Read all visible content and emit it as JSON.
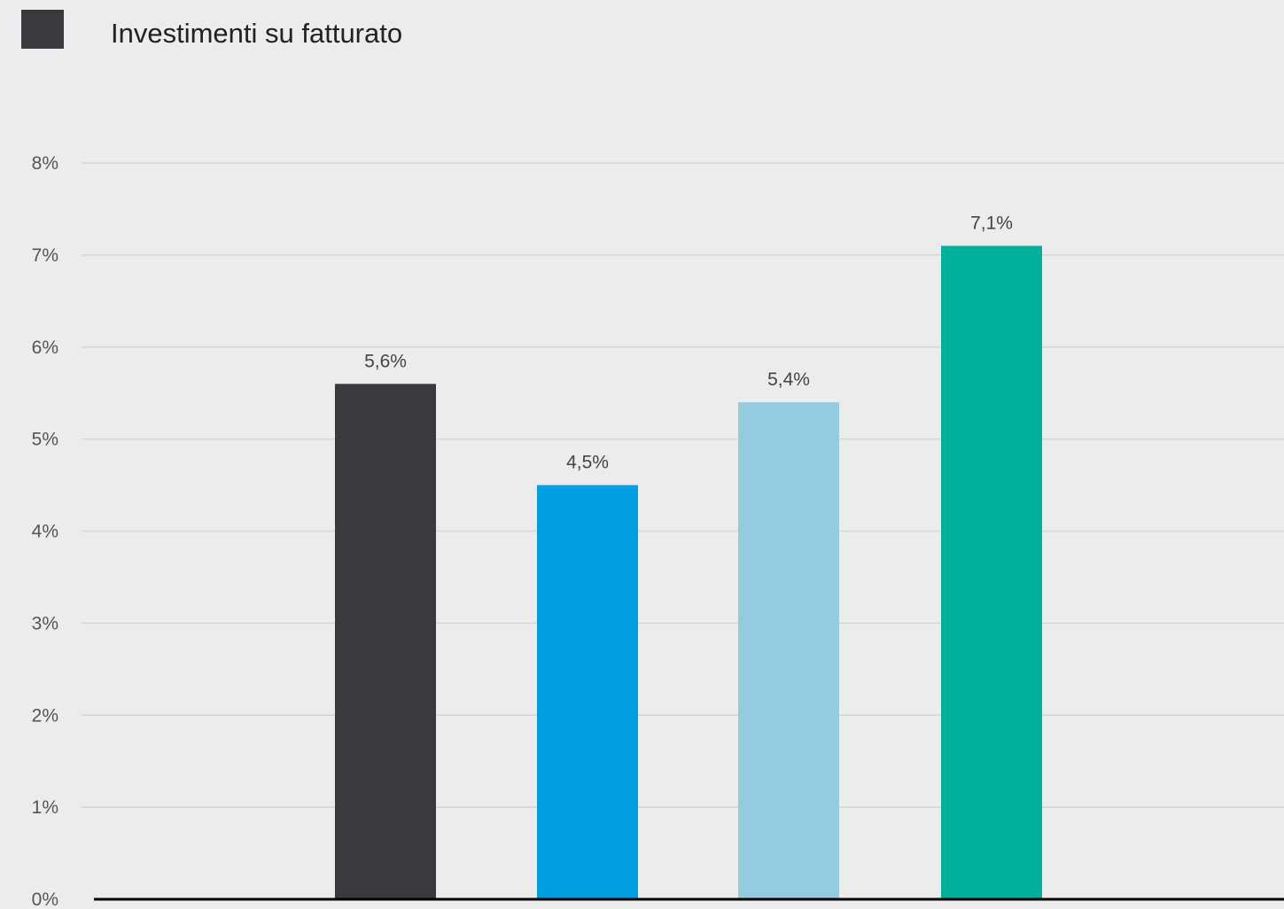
{
  "chart_data": {
    "type": "bar",
    "title": "",
    "legend": {
      "label": "Investimenti su fatturato",
      "color": "#3a393e",
      "placement": "top-left"
    },
    "categories": [
      "",
      "",
      "",
      ""
    ],
    "values": [
      5.6,
      4.5,
      5.4,
      7.1
    ],
    "data_labels": [
      "5,6%",
      "4,5%",
      "5,4%",
      "7,1%"
    ],
    "bar_colors": [
      "#3a393e",
      "#009ee0",
      "#95cbde",
      "#00b09b"
    ],
    "ylim": [
      0,
      8
    ],
    "yticks": [
      0,
      1,
      2,
      3,
      4,
      5,
      6,
      7,
      8
    ],
    "ytick_labels": [
      "0%",
      "1%",
      "2%",
      "3%",
      "4%",
      "5%",
      "6%",
      "7%",
      "8%"
    ],
    "xlabel": "",
    "ylabel": "",
    "grid": true,
    "background": "#ececec"
  }
}
